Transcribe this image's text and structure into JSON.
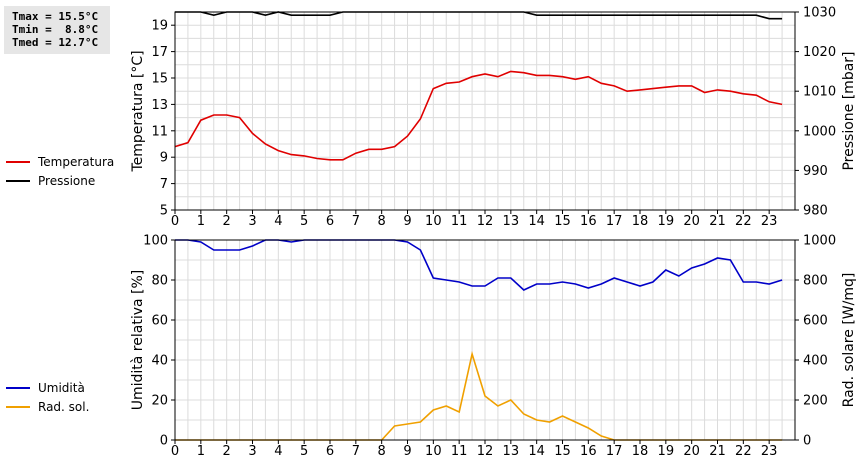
{
  "stats": {
    "tmax": "Tmax = 15.5°C",
    "tmin": "Tmin =  8.8°C",
    "tmed": "Tmed = 12.7°C"
  },
  "legend_top": [
    {
      "label": "Temperatura",
      "color": "#e00000"
    },
    {
      "label": "Pressione",
      "color": "#000000"
    }
  ],
  "legend_bottom": [
    {
      "label": "Umidità",
      "color": "#0000c8"
    },
    {
      "label": "Rad. sol.",
      "color": "#f0a000"
    }
  ],
  "chart_data": [
    {
      "type": "line",
      "xlabel": "",
      "ylabel": "Temperatura [°C]",
      "y2label": "Pressione [mbar]",
      "xlim": [
        0,
        24
      ],
      "xticks": [
        "0",
        "1",
        "2",
        "3",
        "4",
        "5",
        "6",
        "7",
        "8",
        "9",
        "10",
        "11",
        "12",
        "13",
        "14",
        "15",
        "16",
        "17",
        "18",
        "19",
        "20",
        "21",
        "22",
        "23"
      ],
      "ylim": [
        5,
        20
      ],
      "yticks": [
        "5",
        "7",
        "9",
        "11",
        "13",
        "15",
        "17",
        "19"
      ],
      "y2lim": [
        980,
        1030
      ],
      "y2ticks": [
        "980",
        "990",
        "1000",
        "1010",
        "1020",
        "1030"
      ],
      "grid": true,
      "series": [
        {
          "name": "Temperatura",
          "axis": "left",
          "color": "#e00000",
          "x": [
            0,
            0.5,
            1,
            1.5,
            2,
            2.5,
            3,
            3.5,
            4,
            4.5,
            5,
            5.5,
            6,
            6.5,
            7,
            7.5,
            8,
            8.5,
            9,
            9.5,
            10,
            10.5,
            11,
            11.5,
            12,
            12.5,
            13,
            13.5,
            14,
            14.5,
            15,
            15.5,
            16,
            16.5,
            17,
            17.5,
            18,
            18.5,
            19,
            19.5,
            20,
            20.5,
            21,
            21.5,
            22,
            22.5,
            23,
            23.5
          ],
          "values": [
            9.8,
            10.1,
            11.8,
            12.2,
            12.2,
            12.0,
            10.8,
            10.0,
            9.5,
            9.2,
            9.1,
            8.9,
            8.8,
            8.8,
            9.3,
            9.6,
            9.6,
            9.8,
            10.6,
            11.9,
            14.2,
            14.6,
            14.7,
            15.1,
            15.3,
            15.1,
            15.5,
            15.4,
            15.2,
            15.2,
            15.1,
            14.9,
            15.1,
            14.6,
            14.4,
            14.0,
            14.1,
            14.2,
            14.3,
            14.4,
            14.4,
            13.9,
            14.1,
            14.0,
            13.8,
            13.7,
            13.2,
            13.0
          ]
        },
        {
          "name": "Pressione",
          "axis": "right",
          "color": "#000000",
          "x": [
            0,
            0.5,
            1,
            1.5,
            2,
            2.5,
            3,
            3.5,
            4,
            4.5,
            5,
            5.5,
            6,
            6.5,
            7,
            7.5,
            8,
            8.5,
            9,
            9.5,
            10,
            10.5,
            11,
            11.5,
            12,
            12.5,
            13,
            13.5,
            14,
            14.5,
            15,
            15.5,
            16,
            16.5,
            17,
            17.5,
            18,
            18.5,
            19,
            19.5,
            20,
            20.5,
            21,
            21.5,
            22,
            22.5,
            23,
            23.5
          ],
          "values": [
            1030.3,
            1030.3,
            1030,
            1029.2,
            1030,
            1030,
            1030,
            1029.2,
            1030,
            1029.2,
            1029.2,
            1029.2,
            1029.2,
            1030,
            1030,
            1030,
            1030,
            1030,
            1030,
            1030,
            1030,
            1030,
            1030,
            1030,
            1030,
            1030,
            1030,
            1030,
            1029.2,
            1029.2,
            1029.2,
            1029.2,
            1029.2,
            1029.2,
            1029.2,
            1029.2,
            1029.2,
            1029.2,
            1029.2,
            1029.2,
            1029.2,
            1029.2,
            1029.2,
            1029.2,
            1029.2,
            1029.2,
            1028.3,
            1028.3
          ]
        }
      ]
    },
    {
      "type": "line",
      "xlabel": "",
      "ylabel": "Umidità relativa [%]",
      "y2label": "Rad. solare [W/mq]",
      "xlim": [
        0,
        24
      ],
      "xticks": [
        "0",
        "1",
        "2",
        "3",
        "4",
        "5",
        "6",
        "7",
        "8",
        "9",
        "10",
        "11",
        "12",
        "13",
        "14",
        "15",
        "16",
        "17",
        "18",
        "19",
        "20",
        "21",
        "22",
        "23"
      ],
      "ylim": [
        0,
        100
      ],
      "yticks": [
        "0",
        "20",
        "40",
        "60",
        "80",
        "100"
      ],
      "y2lim": [
        0,
        1000
      ],
      "y2ticks": [
        "0",
        "200",
        "400",
        "600",
        "800",
        "1000"
      ],
      "grid": true,
      "series": [
        {
          "name": "Umidità",
          "axis": "left",
          "color": "#0000c8",
          "x": [
            0,
            0.5,
            1,
            1.5,
            2,
            2.5,
            3,
            3.5,
            4,
            4.5,
            5,
            5.5,
            6,
            6.5,
            7,
            7.5,
            8,
            8.5,
            9,
            9.5,
            10,
            10.5,
            11,
            11.5,
            12,
            12.5,
            13,
            13.5,
            14,
            14.5,
            15,
            15.5,
            16,
            16.5,
            17,
            17.5,
            18,
            18.5,
            19,
            19.5,
            20,
            20.5,
            21,
            21.5,
            22,
            22.5,
            23,
            23.5
          ],
          "values": [
            100,
            100,
            99,
            95,
            95,
            95,
            97,
            100,
            100,
            99,
            100,
            100,
            100,
            100,
            100,
            100,
            100,
            100,
            99,
            95,
            81,
            80,
            79,
            77,
            77,
            81,
            81,
            75,
            78,
            78,
            79,
            78,
            76,
            78,
            81,
            79,
            77,
            79,
            85,
            82,
            86,
            88,
            91,
            90,
            79,
            79,
            78,
            80
          ]
        },
        {
          "name": "Rad. sol.",
          "axis": "right",
          "color": "#f0a000",
          "x": [
            0,
            0.5,
            1,
            1.5,
            2,
            2.5,
            3,
            3.5,
            4,
            4.5,
            5,
            5.5,
            6,
            6.5,
            7,
            7.5,
            8,
            8.5,
            9,
            9.5,
            10,
            10.5,
            11,
            11.5,
            12,
            12.5,
            13,
            13.5,
            14,
            14.5,
            15,
            15.5,
            16,
            16.5,
            17,
            17.5,
            18,
            18.5,
            19,
            19.5,
            20,
            20.5,
            21,
            21.5,
            22,
            22.5,
            23,
            23.5
          ],
          "values": [
            0,
            0,
            0,
            0,
            0,
            0,
            0,
            0,
            0,
            0,
            0,
            0,
            0,
            0,
            0,
            0,
            0,
            70,
            80,
            90,
            150,
            170,
            140,
            430,
            220,
            170,
            200,
            130,
            100,
            90,
            120,
            90,
            60,
            20,
            0,
            0,
            0,
            0,
            0,
            0,
            0,
            0,
            0,
            0,
            0,
            0,
            0,
            0
          ]
        }
      ]
    }
  ]
}
